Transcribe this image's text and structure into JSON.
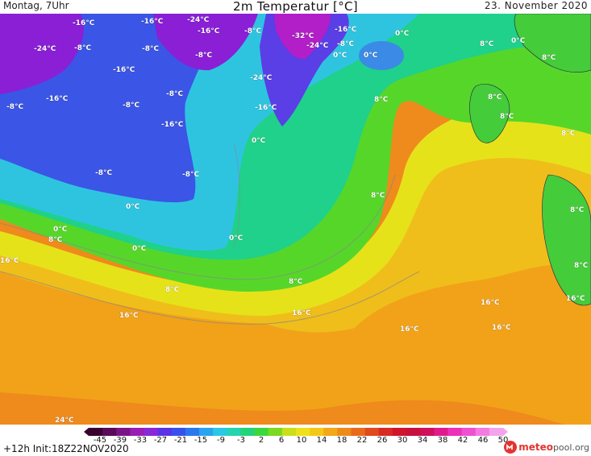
{
  "header": {
    "left": "Montag, 7Uhr",
    "title": "2m Temperatur [°C]",
    "right": "23. November 2020"
  },
  "map": {
    "labels": [
      "-16°C",
      "-16°C",
      "-24°C",
      "-16°C",
      "-8°C",
      "-32°C",
      "-16°C",
      "0°C",
      "8°C",
      "0°C",
      "-24°C",
      "-8°C",
      "-8°C",
      "-8°C",
      "-24°C",
      "-8°C",
      "0°C",
      "0°C",
      "8°C",
      "-8°C",
      "-16°C",
      "-16°C",
      "-8°C",
      "-8°C",
      "-24°C",
      "8°C",
      "-16°C",
      "8°C",
      "-16°C",
      "0°C",
      "8°C",
      "8°C",
      "-8°C",
      "-8°C",
      "8°C",
      "0°C",
      "8°C",
      "0°C",
      "8°C",
      "0°C",
      "0°C",
      "16°C",
      "8°C",
      "8°C",
      "8°C",
      "16°C",
      "16°C",
      "16°C",
      "16°C",
      "16°C",
      "16°C",
      "24°C"
    ],
    "colors": {
      "deep_cold": "#8a1fd6",
      "cold": "#3b55e6",
      "cool": "#2ec4e0",
      "mild": "#1fd18a",
      "green": "#57d62a",
      "yellow": "#e6e21a",
      "warm": "#f2b01a",
      "hot": "#ef8a1c"
    }
  },
  "legend": {
    "ticks": [
      "-45",
      "-39",
      "-33",
      "-27",
      "-21",
      "-15",
      "-9",
      "-3",
      "2",
      "6",
      "10",
      "14",
      "18",
      "22",
      "26",
      "30",
      "34",
      "38",
      "42",
      "46",
      "50"
    ],
    "colors": [
      "#3a0030",
      "#5a0a5a",
      "#7a1488",
      "#9a1eb4",
      "#8a28d8",
      "#5a32e6",
      "#3a50ec",
      "#2a78ee",
      "#2aa4ee",
      "#2ac8e4",
      "#22d4b0",
      "#22d47a",
      "#3cd83a",
      "#7ada20",
      "#c8e01a",
      "#f0e01a",
      "#f4c818",
      "#f2a818",
      "#ee8a1a",
      "#ea6a1c",
      "#e04a1e",
      "#d82a22",
      "#d0142e",
      "#c8103e",
      "#d0105a",
      "#e01a8c",
      "#ec30b8",
      "#f050d0",
      "#f27ae0",
      "#f4a4ec"
    ]
  },
  "footer": {
    "run": "+12h Init:18Z22NOV2020",
    "logo_main": "meteo",
    "logo_tail": "pool.org"
  }
}
